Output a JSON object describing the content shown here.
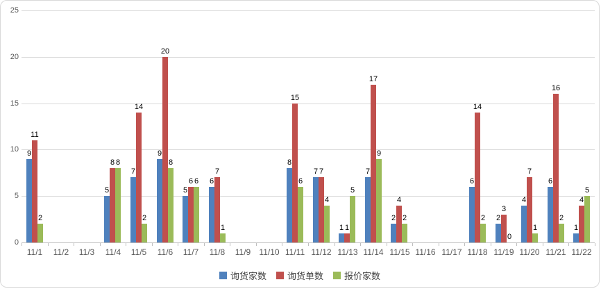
{
  "chart_data": {
    "type": "bar",
    "title": "",
    "xlabel": "",
    "ylabel": "",
    "ylim": [
      0,
      25
    ],
    "ytick_step": 5,
    "grid": true,
    "legend_position": "bottom",
    "data_labels": true,
    "categories": [
      "11/1",
      "11/2",
      "11/3",
      "11/4",
      "11/5",
      "11/6",
      "11/7",
      "11/8",
      "11/9",
      "11/10",
      "11/11",
      "11/12",
      "11/13",
      "11/14",
      "11/15",
      "11/16",
      "11/17",
      "11/18",
      "11/19",
      "11/20",
      "11/21",
      "11/22"
    ],
    "series": [
      {
        "name": "询货家数",
        "color": "#4F81BD",
        "values": [
          9,
          null,
          null,
          5,
          7,
          9,
          5,
          6,
          null,
          null,
          8,
          7,
          1,
          7,
          2,
          null,
          null,
          6,
          2,
          4,
          6,
          1
        ]
      },
      {
        "name": "询货单数",
        "color": "#C0504D",
        "values": [
          11,
          null,
          null,
          8,
          14,
          20,
          6,
          7,
          null,
          null,
          15,
          7,
          1,
          17,
          4,
          null,
          null,
          14,
          3,
          7,
          16,
          4
        ]
      },
      {
        "name": "报价家数",
        "color": "#9BBB59",
        "values": [
          2,
          null,
          null,
          8,
          2,
          8,
          6,
          1,
          null,
          null,
          6,
          4,
          5,
          9,
          2,
          null,
          null,
          2,
          0,
          1,
          2,
          5
        ]
      }
    ]
  },
  "colors": {
    "gridline": "#D9D9D9",
    "axis_line": "#BFBFBF",
    "axis_text": "#595959",
    "data_label_text": "#000000",
    "background": "#FFFFFF",
    "border": "#D9D9D9"
  }
}
